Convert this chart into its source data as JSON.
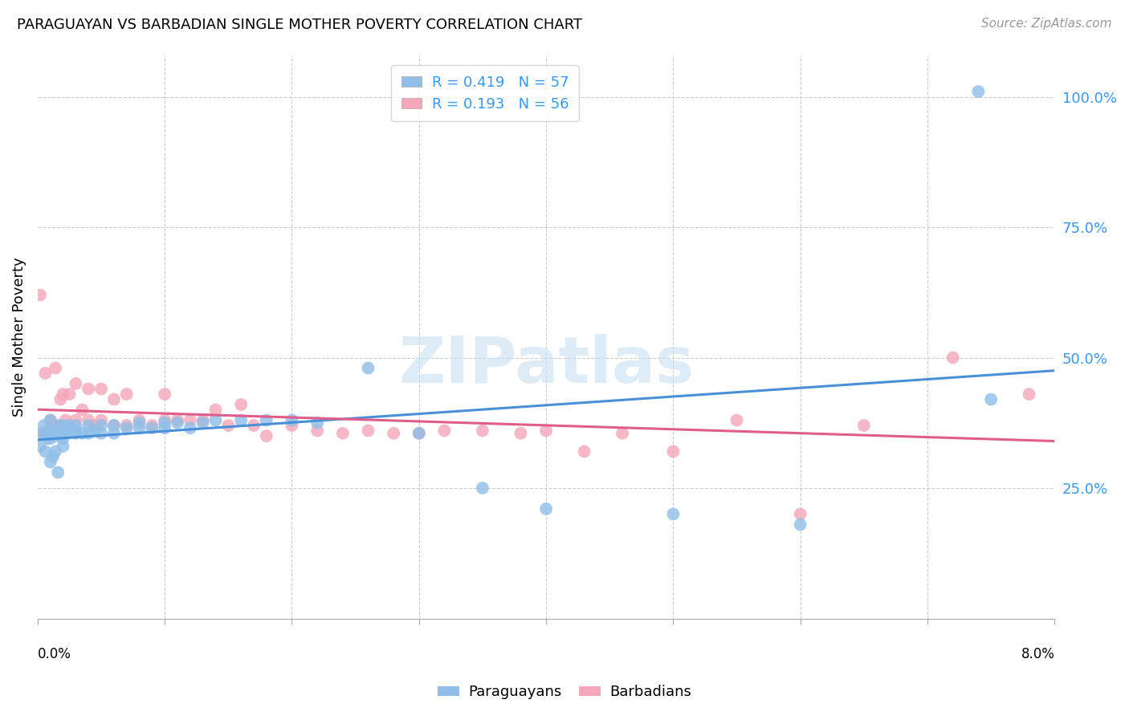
{
  "title": "PARAGUAYAN VS BARBADIAN SINGLE MOTHER POVERTY CORRELATION CHART",
  "source": "Source: ZipAtlas.com",
  "ylabel": "Single Mother Poverty",
  "right_ytick_labels": [
    "25.0%",
    "50.0%",
    "75.0%",
    "100.0%"
  ],
  "right_ytick_positions": [
    0.25,
    0.5,
    0.75,
    1.0
  ],
  "watermark": "ZIPatlas",
  "blue_color": "#8fbfe8",
  "pink_color": "#f4a7b9",
  "blue_line_color": "#4a90d9",
  "pink_line_color": "#e05c8a",
  "blue_r": 0.419,
  "blue_n": 57,
  "pink_r": 0.193,
  "pink_n": 56,
  "xlim": [
    0.0,
    0.08
  ],
  "ylim": [
    0.0,
    1.08
  ],
  "blue_scatter_x": [
    0.0002,
    0.0003,
    0.0005,
    0.0006,
    0.0007,
    0.0008,
    0.0009,
    0.001,
    0.001,
    0.001,
    0.0012,
    0.0013,
    0.0014,
    0.0015,
    0.0016,
    0.0017,
    0.0018,
    0.002,
    0.002,
    0.002,
    0.002,
    0.0022,
    0.0024,
    0.0025,
    0.003,
    0.003,
    0.003,
    0.0035,
    0.004,
    0.004,
    0.0045,
    0.005,
    0.005,
    0.006,
    0.006,
    0.007,
    0.008,
    0.008,
    0.009,
    0.01,
    0.01,
    0.011,
    0.012,
    0.013,
    0.014,
    0.016,
    0.018,
    0.02,
    0.022,
    0.026,
    0.03,
    0.035,
    0.04,
    0.05,
    0.06,
    0.074,
    0.075
  ],
  "blue_scatter_y": [
    0.33,
    0.355,
    0.37,
    0.32,
    0.355,
    0.345,
    0.36,
    0.3,
    0.345,
    0.38,
    0.31,
    0.36,
    0.32,
    0.35,
    0.28,
    0.355,
    0.37,
    0.33,
    0.355,
    0.345,
    0.37,
    0.355,
    0.37,
    0.365,
    0.355,
    0.36,
    0.37,
    0.355,
    0.355,
    0.37,
    0.36,
    0.355,
    0.37,
    0.355,
    0.37,
    0.365,
    0.365,
    0.375,
    0.365,
    0.365,
    0.375,
    0.375,
    0.365,
    0.375,
    0.38,
    0.38,
    0.38,
    0.38,
    0.375,
    0.48,
    0.355,
    0.25,
    0.21,
    0.2,
    0.18,
    1.01,
    0.42
  ],
  "pink_scatter_x": [
    0.0002,
    0.0004,
    0.0006,
    0.0008,
    0.001,
    0.001,
    0.0012,
    0.0014,
    0.0016,
    0.0018,
    0.002,
    0.002,
    0.0022,
    0.0025,
    0.003,
    0.003,
    0.0035,
    0.004,
    0.004,
    0.0045,
    0.005,
    0.005,
    0.006,
    0.006,
    0.007,
    0.007,
    0.008,
    0.009,
    0.01,
    0.01,
    0.011,
    0.012,
    0.013,
    0.014,
    0.015,
    0.016,
    0.017,
    0.018,
    0.02,
    0.022,
    0.024,
    0.026,
    0.028,
    0.03,
    0.032,
    0.035,
    0.038,
    0.04,
    0.043,
    0.046,
    0.05,
    0.055,
    0.06,
    0.065,
    0.072,
    0.078
  ],
  "pink_scatter_y": [
    0.62,
    0.355,
    0.47,
    0.355,
    0.36,
    0.38,
    0.37,
    0.48,
    0.37,
    0.42,
    0.36,
    0.43,
    0.38,
    0.43,
    0.38,
    0.45,
    0.4,
    0.38,
    0.44,
    0.37,
    0.38,
    0.44,
    0.37,
    0.42,
    0.37,
    0.43,
    0.38,
    0.37,
    0.38,
    0.43,
    0.38,
    0.38,
    0.38,
    0.4,
    0.37,
    0.41,
    0.37,
    0.35,
    0.37,
    0.36,
    0.355,
    0.36,
    0.355,
    0.355,
    0.36,
    0.36,
    0.355,
    0.36,
    0.32,
    0.355,
    0.32,
    0.38,
    0.2,
    0.37,
    0.5,
    0.43
  ]
}
